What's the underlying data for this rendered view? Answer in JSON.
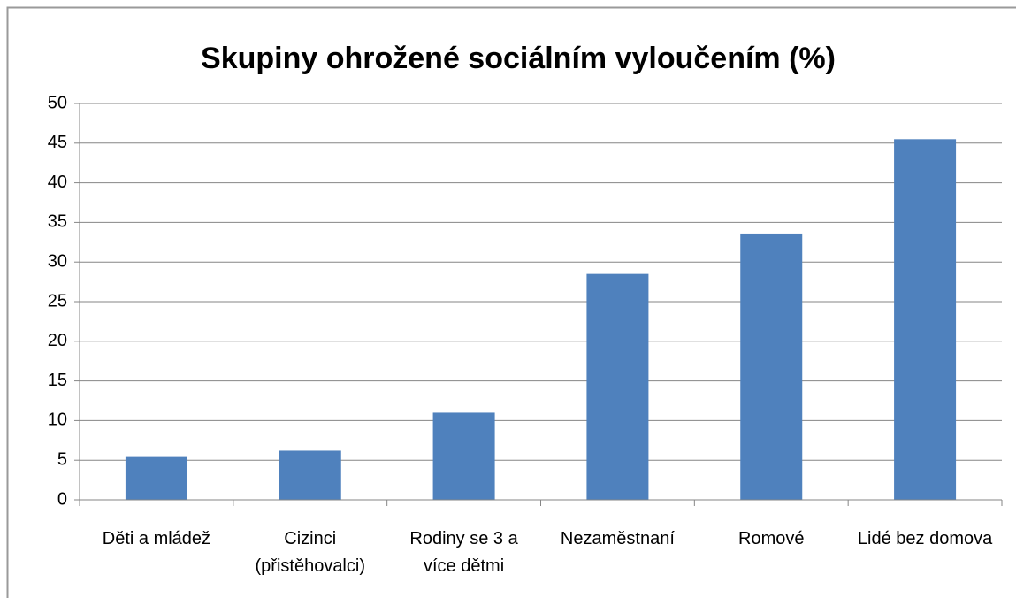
{
  "chart_data": {
    "type": "bar",
    "title": "Skupiny ohrožené sociálním vyloučením (%)",
    "categories": [
      "Děti a mládež",
      "Cizinci (přistěhovalci)",
      "Rodiny se 3 a více dětmi",
      "Nezaměstnaní",
      "Romové",
      "Lidé bez domova"
    ],
    "values": [
      5.4,
      6.2,
      11,
      28.5,
      33.6,
      45.5
    ],
    "color": "#4f81bd",
    "ylim": [
      0,
      50
    ],
    "yticks": [
      0,
      5,
      10,
      15,
      20,
      25,
      30,
      35,
      40,
      45,
      50
    ],
    "grid": true
  }
}
